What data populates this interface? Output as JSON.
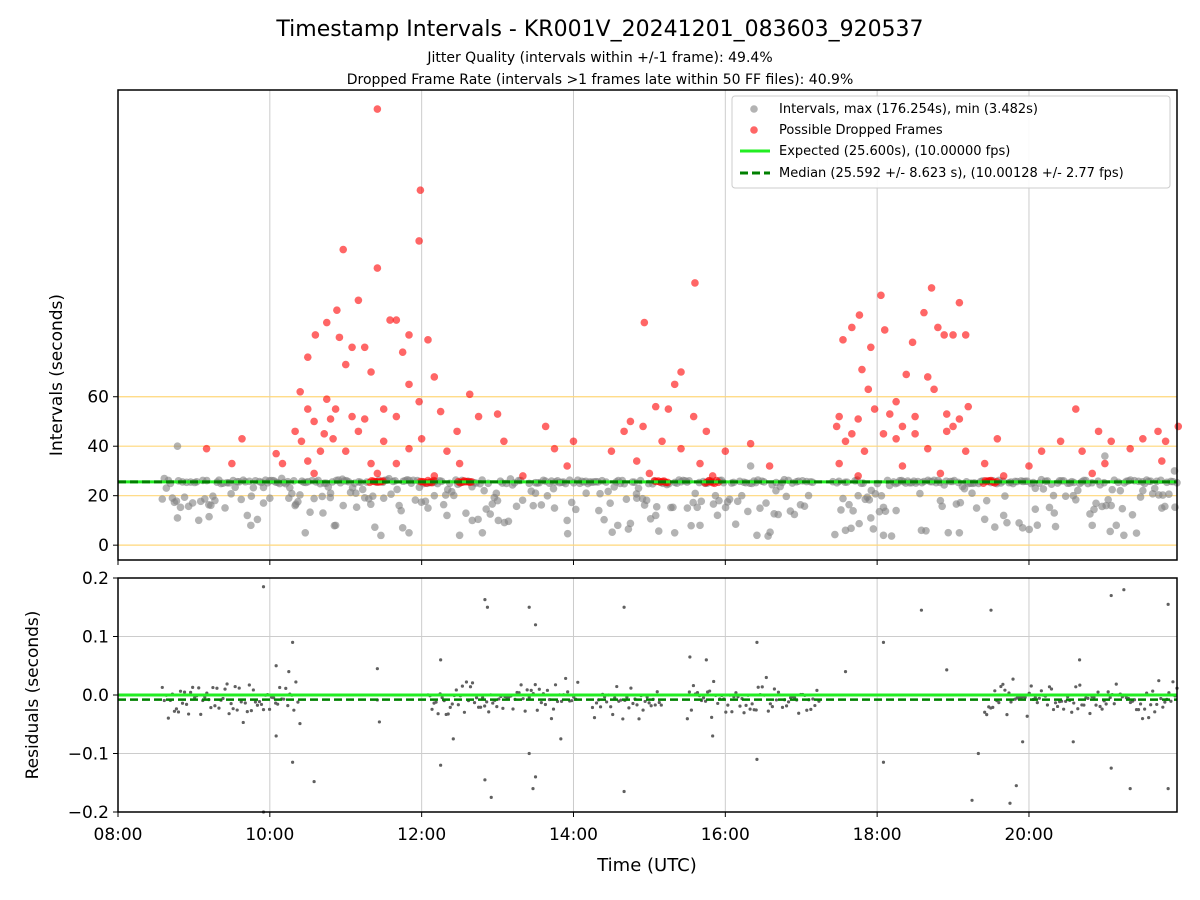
{
  "chart_data": {
    "type": "scatter",
    "title": "Timestamp Intervals - KR001V_20241201_083603_920537",
    "subtitle_line1": "Jitter Quality (intervals within +/-1 frame): 49.4%",
    "subtitle_line2": "Dropped Frame Rate (intervals >1 frames late within 50 FF files): 40.9%",
    "xlabel": "Time (UTC)",
    "x_range": [
      "08:00",
      "21:57"
    ],
    "x_ticks": [
      "08:00",
      "10:00",
      "12:00",
      "14:00",
      "16:00",
      "18:00",
      "20:00"
    ],
    "grid": true,
    "legend_placement": "top-right",
    "colors": {
      "intervals": "#808080",
      "dropped": "#ff0000",
      "expected": "#22ee22",
      "median": "#008000",
      "reference_lines": "#ffd77a",
      "residuals": "#606060"
    },
    "top_panel": {
      "ylabel": "Intervals (seconds)",
      "ylim": [
        -6,
        184
      ],
      "y_ticks": [
        "0",
        "20",
        "40",
        "60"
      ],
      "y_tick_values": [
        0,
        20,
        40,
        60
      ],
      "reference_lines": [
        0,
        20,
        40,
        60
      ],
      "expected_line": 25.6,
      "median_line": 25.592,
      "legend": [
        "Intervals, max (176.254s), min (3.482s)",
        "Possible Dropped Frames",
        "Expected (25.600s), (10.00000 fps)",
        "Median (25.592 +/- 8.623 s), (10.00128 +/- 2.77 fps)"
      ],
      "dropped_frames": [
        {
          "x": "11:25",
          "y": 176.3
        },
        {
          "x": "11:59",
          "y": 143.5
        },
        {
          "x": "11:58",
          "y": 123.0
        },
        {
          "x": "10:58",
          "y": 119.5
        },
        {
          "x": "11:25",
          "y": 112.0
        },
        {
          "x": "15:36",
          "y": 106.0
        },
        {
          "x": "11:10",
          "y": 99.0
        },
        {
          "x": "18:03",
          "y": 101.0
        },
        {
          "x": "18:43",
          "y": 104.0
        },
        {
          "x": "19:05",
          "y": 98.0
        },
        {
          "x": "18:37",
          "y": 94.0
        },
        {
          "x": "10:53",
          "y": 95.0
        },
        {
          "x": "10:45",
          "y": 90.0
        },
        {
          "x": "11:35",
          "y": 91.0
        },
        {
          "x": "11:40",
          "y": 91.0
        },
        {
          "x": "11:50",
          "y": 85.0
        },
        {
          "x": "10:36",
          "y": 85.0
        },
        {
          "x": "10:55",
          "y": 84.0
        },
        {
          "x": "11:05",
          "y": 80.0
        },
        {
          "x": "11:15",
          "y": 80.0
        },
        {
          "x": "12:05",
          "y": 83.0
        },
        {
          "x": "14:56",
          "y": 90.0
        },
        {
          "x": "17:46",
          "y": 93.0
        },
        {
          "x": "17:40",
          "y": 88.0
        },
        {
          "x": "17:33",
          "y": 83.0
        },
        {
          "x": "17:55",
          "y": 80.0
        },
        {
          "x": "18:06",
          "y": 87.0
        },
        {
          "x": "18:28",
          "y": 82.0
        },
        {
          "x": "18:48",
          "y": 88.0
        },
        {
          "x": "18:53",
          "y": 85.0
        },
        {
          "x": "19:00",
          "y": 85.0
        },
        {
          "x": "19:10",
          "y": 85.0
        },
        {
          "x": "11:45",
          "y": 78.0
        },
        {
          "x": "10:30",
          "y": 76.0
        },
        {
          "x": "11:00",
          "y": 73.0
        },
        {
          "x": "11:20",
          "y": 70.0
        },
        {
          "x": "12:10",
          "y": 68.0
        },
        {
          "x": "15:25",
          "y": 70.0
        },
        {
          "x": "17:48",
          "y": 71.0
        },
        {
          "x": "18:23",
          "y": 69.0
        },
        {
          "x": "18:40",
          "y": 68.0
        },
        {
          "x": "10:24",
          "y": 62.0
        },
        {
          "x": "11:50",
          "y": 65.0
        },
        {
          "x": "12:38",
          "y": 61.0
        },
        {
          "x": "10:45",
          "y": 59.0
        },
        {
          "x": "11:58",
          "y": 58.0
        },
        {
          "x": "15:20",
          "y": 65.0
        },
        {
          "x": "17:53",
          "y": 63.0
        },
        {
          "x": "18:15",
          "y": 58.0
        },
        {
          "x": "18:45",
          "y": 63.0
        },
        {
          "x": "10:30",
          "y": 55.0
        },
        {
          "x": "10:52",
          "y": 55.0
        },
        {
          "x": "11:05",
          "y": 52.0
        },
        {
          "x": "11:30",
          "y": 55.0
        },
        {
          "x": "12:15",
          "y": 54.0
        },
        {
          "x": "13:00",
          "y": 53.0
        },
        {
          "x": "15:05",
          "y": 56.0
        },
        {
          "x": "15:15",
          "y": 55.0
        },
        {
          "x": "17:58",
          "y": 55.0
        },
        {
          "x": "18:10",
          "y": 53.0
        },
        {
          "x": "18:55",
          "y": 53.0
        },
        {
          "x": "19:12",
          "y": 56.0
        },
        {
          "x": "20:37",
          "y": 55.0
        },
        {
          "x": "10:35",
          "y": 50.0
        },
        {
          "x": "10:48",
          "y": 51.0
        },
        {
          "x": "11:15",
          "y": 51.0
        },
        {
          "x": "11:40",
          "y": 52.0
        },
        {
          "x": "12:45",
          "y": 52.0
        },
        {
          "x": "14:45",
          "y": 50.0
        },
        {
          "x": "15:35",
          "y": 52.0
        },
        {
          "x": "17:30",
          "y": 52.0
        },
        {
          "x": "17:45",
          "y": 51.0
        },
        {
          "x": "18:30",
          "y": 52.0
        },
        {
          "x": "19:05",
          "y": 51.0
        },
        {
          "x": "13:38",
          "y": 48.0
        },
        {
          "x": "14:55",
          "y": 48.0
        },
        {
          "x": "17:28",
          "y": 48.0
        },
        {
          "x": "18:20",
          "y": 48.0
        },
        {
          "x": "19:00",
          "y": 48.0
        },
        {
          "x": "21:58",
          "y": 48.0
        },
        {
          "x": "10:20",
          "y": 46.0
        },
        {
          "x": "10:43",
          "y": 45.0
        },
        {
          "x": "11:10",
          "y": 46.0
        },
        {
          "x": "12:28",
          "y": 46.0
        },
        {
          "x": "14:40",
          "y": 46.0
        },
        {
          "x": "15:45",
          "y": 46.0
        },
        {
          "x": "17:40",
          "y": 45.0
        },
        {
          "x": "18:05",
          "y": 45.0
        },
        {
          "x": "18:30",
          "y": 45.0
        },
        {
          "x": "18:55",
          "y": 46.0
        },
        {
          "x": "20:55",
          "y": 46.0
        },
        {
          "x": "21:42",
          "y": 46.0
        },
        {
          "x": "09:38",
          "y": 43.0
        },
        {
          "x": "10:25",
          "y": 42.0
        },
        {
          "x": "10:50",
          "y": 43.0
        },
        {
          "x": "11:30",
          "y": 42.0
        },
        {
          "x": "12:00",
          "y": 43.0
        },
        {
          "x": "13:05",
          "y": 42.0
        },
        {
          "x": "14:00",
          "y": 42.0
        },
        {
          "x": "15:10",
          "y": 42.0
        },
        {
          "x": "16:20",
          "y": 41.0
        },
        {
          "x": "17:35",
          "y": 42.0
        },
        {
          "x": "18:15",
          "y": 43.0
        },
        {
          "x": "19:35",
          "y": 43.0
        },
        {
          "x": "20:25",
          "y": 42.0
        },
        {
          "x": "21:05",
          "y": 42.0
        },
        {
          "x": "21:30",
          "y": 43.0
        },
        {
          "x": "21:48",
          "y": 42.0
        },
        {
          "x": "09:10",
          "y": 39.0
        },
        {
          "x": "10:05",
          "y": 37.0
        },
        {
          "x": "10:40",
          "y": 38.0
        },
        {
          "x": "11:00",
          "y": 38.0
        },
        {
          "x": "11:50",
          "y": 39.0
        },
        {
          "x": "12:20",
          "y": 38.0
        },
        {
          "x": "13:45",
          "y": 39.0
        },
        {
          "x": "14:30",
          "y": 38.0
        },
        {
          "x": "15:25",
          "y": 39.0
        },
        {
          "x": "16:00",
          "y": 38.0
        },
        {
          "x": "17:50",
          "y": 38.0
        },
        {
          "x": "18:40",
          "y": 39.0
        },
        {
          "x": "19:10",
          "y": 38.0
        },
        {
          "x": "20:10",
          "y": 38.0
        },
        {
          "x": "20:42",
          "y": 38.0
        },
        {
          "x": "21:20",
          "y": 39.0
        },
        {
          "x": "09:30",
          "y": 33.0
        },
        {
          "x": "10:10",
          "y": 33.0
        },
        {
          "x": "10:30",
          "y": 34.0
        },
        {
          "x": "11:20",
          "y": 33.0
        },
        {
          "x": "11:40",
          "y": 33.0
        },
        {
          "x": "12:30",
          "y": 33.0
        },
        {
          "x": "13:55",
          "y": 32.0
        },
        {
          "x": "14:50",
          "y": 34.0
        },
        {
          "x": "15:40",
          "y": 33.0
        },
        {
          "x": "16:35",
          "y": 32.0
        },
        {
          "x": "17:30",
          "y": 33.0
        },
        {
          "x": "18:20",
          "y": 32.0
        },
        {
          "x": "19:25",
          "y": 33.0
        },
        {
          "x": "20:00",
          "y": 32.0
        },
        {
          "x": "21:00",
          "y": 33.0
        },
        {
          "x": "21:45",
          "y": 34.0
        },
        {
          "x": "10:35",
          "y": 29.0
        },
        {
          "x": "11:25",
          "y": 29.0
        },
        {
          "x": "12:10",
          "y": 28.0
        },
        {
          "x": "13:20",
          "y": 28.0
        },
        {
          "x": "15:00",
          "y": 29.0
        },
        {
          "x": "15:50",
          "y": 28.0
        },
        {
          "x": "17:45",
          "y": 28.0
        },
        {
          "x": "18:50",
          "y": 29.0
        },
        {
          "x": "19:40",
          "y": 28.0
        },
        {
          "x": "20:50",
          "y": 29.0
        }
      ],
      "dropped_cluster_near_expected": [
        {
          "x": "11:25",
          "y": 25.6
        },
        {
          "x": "12:05",
          "y": 25.6
        },
        {
          "x": "12:35",
          "y": 25.6
        },
        {
          "x": "15:10",
          "y": 25.6
        },
        {
          "x": "15:50",
          "y": 25.6
        },
        {
          "x": "19:30",
          "y": 25.6
        }
      ],
      "intervals": [
        {
          "x": "08:47",
          "y": 40.0
        },
        {
          "x": "08:47",
          "y": 11.0
        },
        {
          "x": "09:12",
          "y": 11.5
        },
        {
          "x": "09:45",
          "y": 8.0
        },
        {
          "x": "09:55",
          "y": 17.0
        },
        {
          "x": "10:00",
          "y": 19.0
        },
        {
          "x": "10:15",
          "y": 19.0
        },
        {
          "x": "10:20",
          "y": 16.0
        },
        {
          "x": "10:28",
          "y": 5.0
        },
        {
          "x": "10:42",
          "y": 13.0
        },
        {
          "x": "10:48",
          "y": 21.0
        },
        {
          "x": "10:52",
          "y": 8.0
        },
        {
          "x": "10:58",
          "y": 16.0
        },
        {
          "x": "11:08",
          "y": 21.0
        },
        {
          "x": "11:30",
          "y": 19.0
        },
        {
          "x": "11:45",
          "y": 7.0
        },
        {
          "x": "11:50",
          "y": 5.0
        },
        {
          "x": "12:05",
          "y": 15.0
        },
        {
          "x": "12:10",
          "y": 20.0
        },
        {
          "x": "12:20",
          "y": 12.0
        },
        {
          "x": "12:30",
          "y": 4.0
        },
        {
          "x": "12:40",
          "y": 10.0
        },
        {
          "x": "12:48",
          "y": 5.0
        },
        {
          "x": "13:00",
          "y": 18.0
        },
        {
          "x": "13:30",
          "y": 21.0
        },
        {
          "x": "13:45",
          "y": 15.0
        },
        {
          "x": "13:55",
          "y": 10.0
        },
        {
          "x": "14:10",
          "y": 21.0
        },
        {
          "x": "14:20",
          "y": 14.0
        },
        {
          "x": "14:35",
          "y": 8.0
        },
        {
          "x": "14:50",
          "y": 19.0
        },
        {
          "x": "15:05",
          "y": 12.0
        },
        {
          "x": "15:20",
          "y": 5.0
        },
        {
          "x": "15:30",
          "y": 15.0
        },
        {
          "x": "15:40",
          "y": 8.0
        },
        {
          "x": "15:55",
          "y": 18.0
        },
        {
          "x": "16:20",
          "y": 32.0
        },
        {
          "x": "16:25",
          "y": 4.0
        },
        {
          "x": "16:40",
          "y": 22.0
        },
        {
          "x": "17:35",
          "y": 6.0
        },
        {
          "x": "17:45",
          "y": 20.0
        },
        {
          "x": "17:55",
          "y": 11.0
        },
        {
          "x": "18:05",
          "y": 4.0
        },
        {
          "x": "18:15",
          "y": 14.0
        },
        {
          "x": "18:35",
          "y": 6.0
        },
        {
          "x": "18:50",
          "y": 18.0
        },
        {
          "x": "19:05",
          "y": 5.0
        },
        {
          "x": "19:15",
          "y": 21.0
        },
        {
          "x": "19:40",
          "y": 12.0
        },
        {
          "x": "19:55",
          "y": 7.0
        },
        {
          "x": "20:05",
          "y": 23.0
        },
        {
          "x": "20:20",
          "y": 13.0
        },
        {
          "x": "20:35",
          "y": 20.0
        },
        {
          "x": "20:50",
          "y": 8.0
        },
        {
          "x": "21:05",
          "y": 16.0
        },
        {
          "x": "21:15",
          "y": 4.0
        },
        {
          "x": "21:30",
          "y": 22.0
        },
        {
          "x": "21:45",
          "y": 15.0
        },
        {
          "x": "21:55",
          "y": 30.0
        },
        {
          "x": "21:00",
          "y": 36.0
        }
      ]
    },
    "bottom_panel": {
      "ylabel": "Residuals (seconds)",
      "ylim": [
        -0.2,
        0.2
      ],
      "y_ticks": [
        "−0.2",
        "−0.1",
        "0.0",
        "0.1",
        "0.2"
      ],
      "y_tick_values": [
        -0.2,
        -0.1,
        0.0,
        0.1,
        0.2
      ],
      "expected_line": 0.0,
      "median_line": -0.008,
      "residual_outliers": [
        {
          "x": "09:55",
          "y": 0.185
        },
        {
          "x": "09:55",
          "y": -0.2
        },
        {
          "x": "10:05",
          "y": 0.05
        },
        {
          "x": "10:05",
          "y": -0.07
        },
        {
          "x": "10:18",
          "y": 0.09
        },
        {
          "x": "10:15",
          "y": 0.04
        },
        {
          "x": "10:18",
          "y": -0.115
        },
        {
          "x": "10:35",
          "y": -0.148
        },
        {
          "x": "11:25",
          "y": 0.045
        },
        {
          "x": "12:15",
          "y": -0.12
        },
        {
          "x": "12:15",
          "y": 0.06
        },
        {
          "x": "12:25",
          "y": -0.075
        },
        {
          "x": "12:50",
          "y": 0.163
        },
        {
          "x": "12:52",
          "y": 0.15
        },
        {
          "x": "12:50",
          "y": -0.145
        },
        {
          "x": "12:55",
          "y": -0.175
        },
        {
          "x": "13:25",
          "y": 0.15
        },
        {
          "x": "13:30",
          "y": 0.12
        },
        {
          "x": "13:25",
          "y": -0.1
        },
        {
          "x": "13:30",
          "y": -0.14
        },
        {
          "x": "13:28",
          "y": -0.16
        },
        {
          "x": "13:50",
          "y": -0.075
        },
        {
          "x": "14:40",
          "y": 0.15
        },
        {
          "x": "14:40",
          "y": -0.165
        },
        {
          "x": "15:32",
          "y": 0.065
        },
        {
          "x": "15:45",
          "y": 0.06
        },
        {
          "x": "15:50",
          "y": -0.07
        },
        {
          "x": "16:25",
          "y": 0.09
        },
        {
          "x": "16:25",
          "y": -0.11
        },
        {
          "x": "17:35",
          "y": 0.04
        },
        {
          "x": "18:05",
          "y": 0.09
        },
        {
          "x": "18:05",
          "y": -0.115
        },
        {
          "x": "18:35",
          "y": 0.145
        },
        {
          "x": "18:55",
          "y": 0.043
        },
        {
          "x": "19:15",
          "y": -0.18
        },
        {
          "x": "19:20",
          "y": -0.1
        },
        {
          "x": "19:30",
          "y": 0.145
        },
        {
          "x": "19:45",
          "y": -0.185
        },
        {
          "x": "19:50",
          "y": -0.155
        },
        {
          "x": "19:55",
          "y": -0.08
        },
        {
          "x": "20:40",
          "y": 0.06
        },
        {
          "x": "20:35",
          "y": -0.08
        },
        {
          "x": "21:05",
          "y": 0.17
        },
        {
          "x": "21:05",
          "y": -0.125
        },
        {
          "x": "21:20",
          "y": -0.16
        },
        {
          "x": "21:15",
          "y": 0.18
        },
        {
          "x": "21:50",
          "y": 0.155
        },
        {
          "x": "21:50",
          "y": -0.16
        }
      ]
    }
  }
}
